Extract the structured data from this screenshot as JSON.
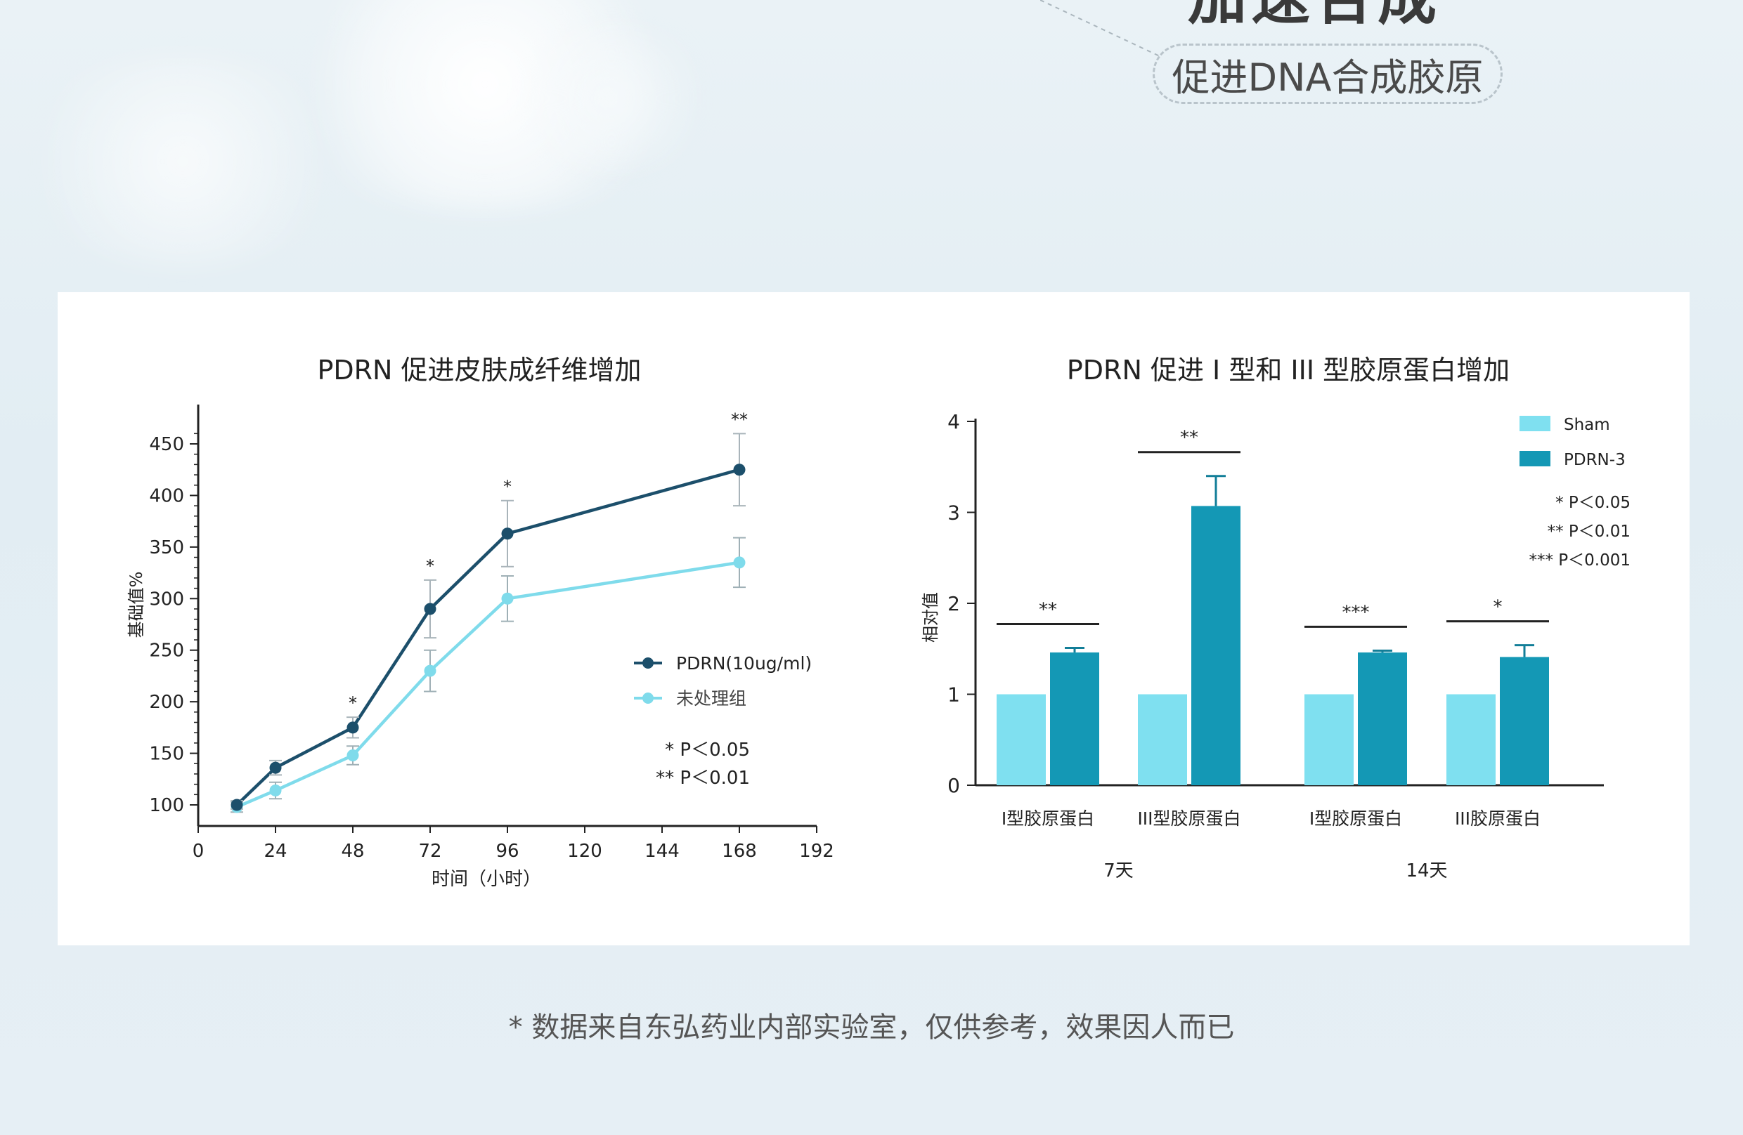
{
  "header": {
    "title_partial": "加速合成",
    "subtitle": "促进DNA合成胶原"
  },
  "footnote": "* 数据来自东弘药业内部实验室，仅供参考，效果因人而已",
  "colors": {
    "dark_series": "#1c4f6b",
    "light_series": "#7fdbeb",
    "bar_sham": "#7fe0f0",
    "bar_pdrn": "#1498b5"
  },
  "chart_data": [
    {
      "type": "line",
      "title": "PDRN 促进皮肤成纤维增加",
      "xlabel": "时间（小时）",
      "ylabel": "基础值%",
      "xlim": [
        0,
        192
      ],
      "ylim": [
        90,
        470
      ],
      "xticks": [
        0,
        24,
        48,
        72,
        96,
        120,
        144,
        168,
        192
      ],
      "yticks": [
        100,
        150,
        200,
        250,
        300,
        350,
        400,
        450
      ],
      "legend_position": "right-middle",
      "series": [
        {
          "name": "PDRN(10ug/ml)",
          "x": [
            12,
            24,
            48,
            72,
            96,
            168
          ],
          "y": [
            100,
            136,
            175,
            290,
            363,
            425
          ],
          "err": [
            4,
            7,
            10,
            28,
            32,
            35
          ],
          "sig": [
            "",
            "",
            "*",
            "*",
            "*",
            "**"
          ]
        },
        {
          "name": "未处理组",
          "x": [
            12,
            24,
            48,
            72,
            96,
            168
          ],
          "y": [
            98,
            114,
            148,
            230,
            300,
            335
          ],
          "err": [
            5,
            8,
            9,
            20,
            22,
            24
          ]
        }
      ],
      "annotations": [
        "* P＜0.05",
        "** P＜0.01"
      ]
    },
    {
      "type": "bar",
      "title": "PDRN 促进 I 型和 III 型胶原蛋白增加",
      "ylabel": "相对值",
      "ylim": [
        0,
        4
      ],
      "yticks": [
        0,
        1,
        2,
        3,
        4
      ],
      "categories": [
        "I型胶原蛋白",
        "III型胶原蛋白",
        "I型胶原蛋白",
        "III胶原蛋白"
      ],
      "groups": [
        {
          "label": "7天",
          "categories": [
            0,
            1
          ]
        },
        {
          "label": "14天",
          "categories": [
            2,
            3
          ]
        }
      ],
      "legend_position": "top-right",
      "series": [
        {
          "name": "Sham",
          "values": [
            1.0,
            1.0,
            1.0,
            1.0
          ],
          "err": [
            0,
            0,
            0,
            0
          ]
        },
        {
          "name": "PDRN-3",
          "values": [
            1.46,
            3.07,
            1.46,
            1.41
          ],
          "err": [
            0.05,
            0.33,
            0.02,
            0.13
          ]
        }
      ],
      "significance": [
        "**",
        "**",
        "***",
        "*"
      ],
      "annotations": [
        "* P＜0.05",
        "** P＜0.01",
        "*** P＜0.001"
      ]
    }
  ]
}
